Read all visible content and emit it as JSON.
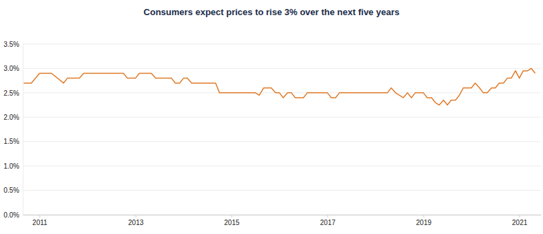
{
  "chart_data": {
    "type": "line",
    "title": "Consumers expect prices to rise 3% over the next five years",
    "x": [
      2010.67,
      2010.83,
      2011.0,
      2011.25,
      2011.5,
      2011.58,
      2011.83,
      2011.92,
      2012.75,
      2012.83,
      2013.0,
      2013.08,
      2013.33,
      2013.42,
      2013.75,
      2013.83,
      2013.92,
      2014.0,
      2014.08,
      2014.17,
      2014.67,
      2014.75,
      2015.5,
      2015.58,
      2015.67,
      2015.83,
      2015.92,
      2016.0,
      2016.08,
      2016.17,
      2016.25,
      2016.33,
      2016.5,
      2016.58,
      2017.0,
      2017.08,
      2017.17,
      2017.25,
      2018.25,
      2018.33,
      2018.42,
      2018.58,
      2018.67,
      2018.75,
      2018.83,
      2019.0,
      2019.08,
      2019.17,
      2019.25,
      2019.33,
      2019.42,
      2019.5,
      2019.58,
      2019.67,
      2019.75,
      2019.83,
      2020.0,
      2020.08,
      2020.17,
      2020.25,
      2020.33,
      2020.42,
      2020.5,
      2020.58,
      2020.67,
      2020.75,
      2020.83,
      2020.92,
      2021.0,
      2021.08,
      2021.17,
      2021.25,
      2021.33
    ],
    "values": [
      2.7,
      2.7,
      2.9,
      2.9,
      2.7,
      2.8,
      2.8,
      2.9,
      2.9,
      2.8,
      2.8,
      2.9,
      2.9,
      2.8,
      2.8,
      2.7,
      2.7,
      2.8,
      2.8,
      2.7,
      2.7,
      2.5,
      2.5,
      2.45,
      2.6,
      2.6,
      2.5,
      2.5,
      2.4,
      2.5,
      2.5,
      2.4,
      2.4,
      2.5,
      2.5,
      2.4,
      2.4,
      2.5,
      2.5,
      2.6,
      2.5,
      2.4,
      2.5,
      2.4,
      2.5,
      2.5,
      2.4,
      2.4,
      2.3,
      2.25,
      2.35,
      2.25,
      2.35,
      2.35,
      2.45,
      2.6,
      2.6,
      2.7,
      2.6,
      2.5,
      2.5,
      2.6,
      2.6,
      2.7,
      2.7,
      2.8,
      2.8,
      2.95,
      2.8,
      2.95,
      2.95,
      3.0,
      2.9
    ],
    "color": "#e07b2a",
    "xlim": [
      2010.65,
      2021.45
    ],
    "xticks": [
      2011,
      2013,
      2015,
      2017,
      2019,
      2021
    ],
    "ylim": [
      0,
      3.5
    ],
    "yticks": [
      {
        "value": 0,
        "label": "0.0%"
      },
      {
        "value": 0.5,
        "label": "0.5%"
      },
      {
        "value": 1,
        "label": "1.0%"
      },
      {
        "value": 1.5,
        "label": "1.5%"
      },
      {
        "value": 2,
        "label": "2.0%"
      },
      {
        "value": 2.5,
        "label": "2.5%"
      },
      {
        "value": 3,
        "label": "3.0%"
      },
      {
        "value": 3.5,
        "label": "3.5%"
      }
    ],
    "grid": true
  }
}
